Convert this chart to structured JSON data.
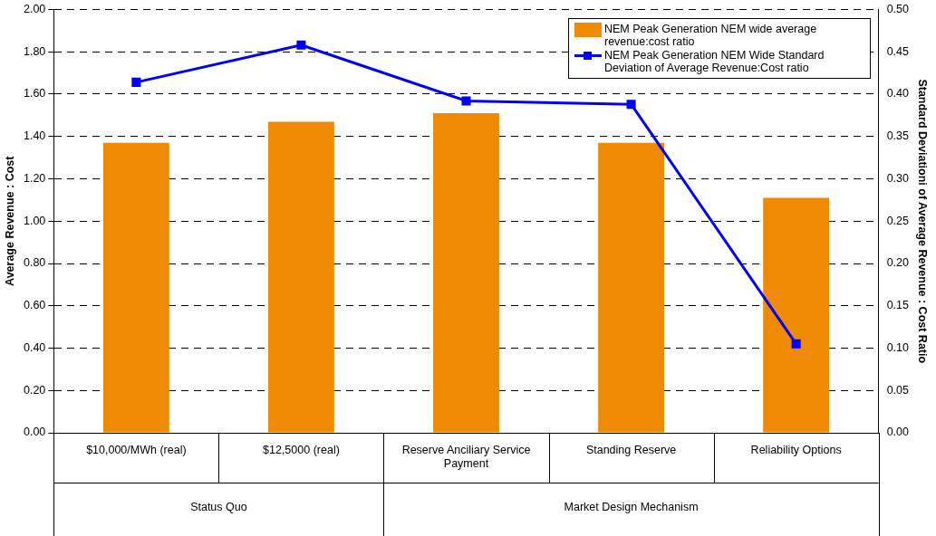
{
  "chart_data": {
    "type": "bar",
    "categories": [
      "$10,000/MWh (real)",
      "$12,5000 (real)",
      "Reserve Anciliary Service Payment",
      "Standing Reserve",
      "Reliability Options"
    ],
    "series": [
      {
        "name": "NEM Peak Generation NEM wide average revenue:cost ratio",
        "color": "#ee8a03",
        "values": [
          1.37,
          1.47,
          1.51,
          1.37,
          1.11
        ]
      },
      {
        "name": "NEM Peak Generation NEM Wide Standard Deviation of Average Revenue:Cost ratio",
        "type": "line",
        "axis": "y2",
        "color": "#0000ff",
        "values": [
          0.414,
          0.458,
          0.392,
          0.388,
          0.105
        ]
      }
    ],
    "ylabel": "Average Revenue : Cost",
    "y2label": "Standard Deviationi of Average Revenue : Cost Ratio",
    "ylim": [
      0,
      2
    ],
    "yticks": [
      {
        "value": 0,
        "label": "0.00"
      },
      {
        "value": 0.2,
        "label": "0.20"
      },
      {
        "value": 0.4,
        "label": "0.40"
      },
      {
        "value": 0.6,
        "label": "0.60"
      },
      {
        "value": 0.8,
        "label": "0.80"
      },
      {
        "value": 1,
        "label": "1.00"
      },
      {
        "value": 1.2,
        "label": "1.20"
      },
      {
        "value": 1.4,
        "label": "1.40"
      },
      {
        "value": 1.6,
        "label": "1.60"
      },
      {
        "value": 1.8,
        "label": "1.80"
      },
      {
        "value": 2,
        "label": "2.00"
      }
    ],
    "y2lim": [
      0,
      0.5
    ],
    "y2ticks": [
      {
        "value": 0,
        "label": "0.00"
      },
      {
        "value": 0.05,
        "label": "0.05"
      },
      {
        "value": 0.1,
        "label": "0.10"
      },
      {
        "value": 0.15,
        "label": "0.15"
      },
      {
        "value": 0.2,
        "label": "0.20"
      },
      {
        "value": 0.25,
        "label": "0.25"
      },
      {
        "value": 0.3,
        "label": "0.30"
      },
      {
        "value": 0.35,
        "label": "0.35"
      },
      {
        "value": 0.4,
        "label": "0.40"
      },
      {
        "value": 0.45,
        "label": "0.45"
      },
      {
        "value": 0.5,
        "label": "0.50"
      }
    ],
    "annotations": [
      "Status Quo",
      "Market Design Mechanism"
    ],
    "grid": "y",
    "legend": "top right",
    "marker": "square",
    "line_style": "solid"
  }
}
